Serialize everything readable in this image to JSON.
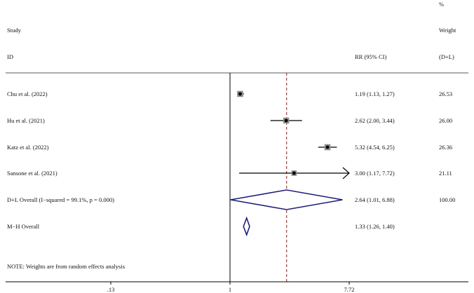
{
  "chart_data": {
    "type": "forest",
    "headers": {
      "study_line1": "Study",
      "study_line2": "ID",
      "effect": "RR (95% CI)",
      "weight_line1": "%",
      "weight_line2": "Weight",
      "weight_line3": "(D+L)"
    },
    "studies": [
      {
        "label": "Chu et al. (2022)",
        "rr": 1.19,
        "lower": 1.13,
        "upper": 1.27,
        "ci_text": "1.19 (1.13, 1.27)",
        "weight": "26.53",
        "weight_value": 26.53
      },
      {
        "label": "Hu et al. (2021)",
        "rr": 2.62,
        "lower": 2.0,
        "upper": 3.44,
        "ci_text": "2.62 (2.00, 3.44)",
        "weight": "26.00",
        "weight_value": 26.0
      },
      {
        "label": "Katz et al. (2022)",
        "rr": 5.32,
        "lower": 4.54,
        "upper": 6.25,
        "ci_text": "5.32 (4.54, 6.25)",
        "weight": "26.36",
        "weight_value": 26.36
      },
      {
        "label": "Sansone et al. (2021)",
        "rr": 3.0,
        "lower": 1.17,
        "upper": 7.72,
        "ci_text": "3.00 (1.17, 7.72)",
        "weight": "21.11",
        "weight_value": 21.11
      }
    ],
    "overall": [
      {
        "label": "D+L Overall  (I−squared = 99.1%, p = 0.000)",
        "rr": 2.64,
        "lower": 1.01,
        "upper": 6.88,
        "ci_text": "2.64 (1.01, 6.88)",
        "weight": "100.00"
      },
      {
        "label": "M−H Overall",
        "rr": 1.33,
        "lower": 1.26,
        "upper": 1.4,
        "ci_text": "1.33 (1.26, 1.40)",
        "weight": ""
      }
    ],
    "note": "NOTE: Weights are from random effects analysis",
    "x_scale": "log",
    "x_ticks": [
      {
        "value": 0.1295,
        "label": ".13"
      },
      {
        "value": 1,
        "label": "1"
      },
      {
        "value": 7.72,
        "label": "7.72"
      }
    ],
    "null_line": 1,
    "pooled_line": 2.64,
    "colors": {
      "diamond": "#1f1f7a",
      "pooled_line": "#8b1a1a",
      "ci": "#000000",
      "square": "#8c8c8c"
    }
  }
}
